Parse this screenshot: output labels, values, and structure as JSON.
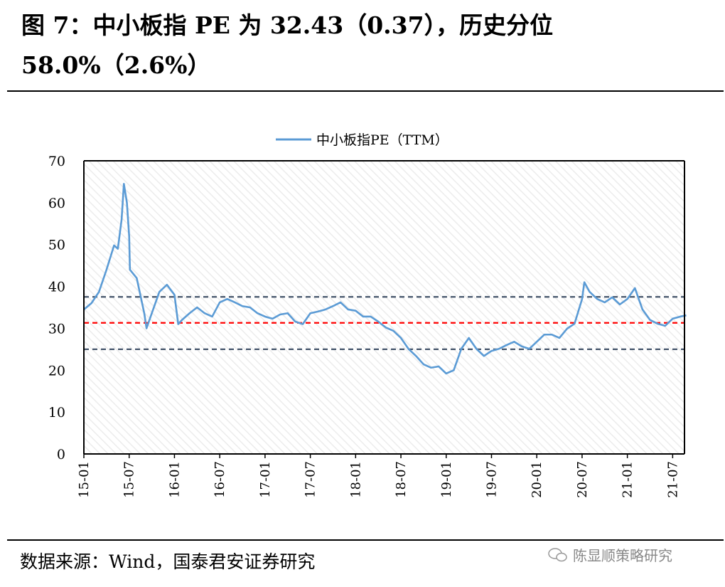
{
  "title": "图 7：中小板指 PE 为 32.43（0.37），历史分位 58.0%（2.6%）",
  "footer": "数据来源：Wind，国泰君安证券研究",
  "watermark": "陈显顺策略研究",
  "chart_data": {
    "type": "line",
    "legend": "中小板指PE（TTM）",
    "legend_position": "top-center",
    "ylim": [
      0,
      70
    ],
    "yticks": [
      0,
      10,
      20,
      30,
      40,
      50,
      60,
      70
    ],
    "x_start": "2015-01",
    "xticks": [
      "15-01",
      "15-07",
      "16-01",
      "16-07",
      "17-01",
      "17-07",
      "18-01",
      "18-07",
      "19-01",
      "19-07",
      "20-01",
      "20-07",
      "21-01",
      "21-07"
    ],
    "reference_lines": [
      {
        "name": "upper",
        "value": 37.5,
        "color": "#44546A"
      },
      {
        "name": "mean",
        "value": 31.3,
        "color": "#FF0000"
      },
      {
        "name": "lower",
        "value": 25.0,
        "color": "#44546A"
      }
    ],
    "series": [
      {
        "name": "中小板指PE（TTM）",
        "color": "#5B9BD5",
        "points": [
          [
            0,
            34.5
          ],
          [
            1,
            36
          ],
          [
            2,
            38.7
          ],
          [
            3,
            44
          ],
          [
            4,
            49.8
          ],
          [
            4.5,
            49
          ],
          [
            5,
            56
          ],
          [
            5.3,
            64.5
          ],
          [
            5.7,
            60
          ],
          [
            6,
            52
          ],
          [
            6.1,
            44
          ],
          [
            7,
            42
          ],
          [
            8,
            33.6
          ],
          [
            8.3,
            30
          ],
          [
            9,
            33.6
          ],
          [
            10,
            38.7
          ],
          [
            11,
            40.4
          ],
          [
            12,
            38
          ],
          [
            12.5,
            31
          ],
          [
            13,
            32
          ],
          [
            14,
            33.6
          ],
          [
            15,
            35
          ],
          [
            16,
            33.6
          ],
          [
            17,
            32.8
          ],
          [
            18,
            36.2
          ],
          [
            19,
            37
          ],
          [
            20,
            36.2
          ],
          [
            21,
            35.3
          ],
          [
            22,
            35
          ],
          [
            23,
            33.6
          ],
          [
            24,
            32.8
          ],
          [
            25,
            32.3
          ],
          [
            26,
            33.3
          ],
          [
            27,
            33.6
          ],
          [
            28,
            31.6
          ],
          [
            29,
            31
          ],
          [
            30,
            33.6
          ],
          [
            31,
            34
          ],
          [
            32,
            34.5
          ],
          [
            33,
            35.3
          ],
          [
            34,
            36.2
          ],
          [
            35,
            34.5
          ],
          [
            36,
            34.2
          ],
          [
            37,
            32.8
          ],
          [
            38,
            32.8
          ],
          [
            39,
            31.6
          ],
          [
            40,
            30.2
          ],
          [
            41,
            29.4
          ],
          [
            42,
            27.7
          ],
          [
            43,
            25.1
          ],
          [
            44,
            23.4
          ],
          [
            45,
            21.4
          ],
          [
            46,
            20.6
          ],
          [
            47,
            20.9
          ],
          [
            48,
            19.2
          ],
          [
            49,
            20
          ],
          [
            50,
            25.1
          ],
          [
            51,
            27.7
          ],
          [
            52,
            25.1
          ],
          [
            53,
            23.4
          ],
          [
            54,
            24.6
          ],
          [
            55,
            25.1
          ],
          [
            56,
            26
          ],
          [
            57,
            26.8
          ],
          [
            58,
            25.7
          ],
          [
            59,
            25.1
          ],
          [
            60,
            26.8
          ],
          [
            61,
            28.5
          ],
          [
            62,
            28.5
          ],
          [
            63,
            27.7
          ],
          [
            64,
            29.9
          ],
          [
            65,
            31.1
          ],
          [
            66,
            37
          ],
          [
            66.3,
            41
          ],
          [
            67,
            38.7
          ],
          [
            68,
            37
          ],
          [
            69,
            36.2
          ],
          [
            70,
            37.4
          ],
          [
            71,
            35.7
          ],
          [
            72,
            37
          ],
          [
            73,
            39.6
          ],
          [
            74,
            34.5
          ],
          [
            75,
            32
          ],
          [
            76,
            31.1
          ],
          [
            77,
            30.6
          ],
          [
            78,
            32.3
          ],
          [
            79,
            32.8
          ],
          [
            79.8,
            33.1
          ]
        ]
      }
    ]
  }
}
